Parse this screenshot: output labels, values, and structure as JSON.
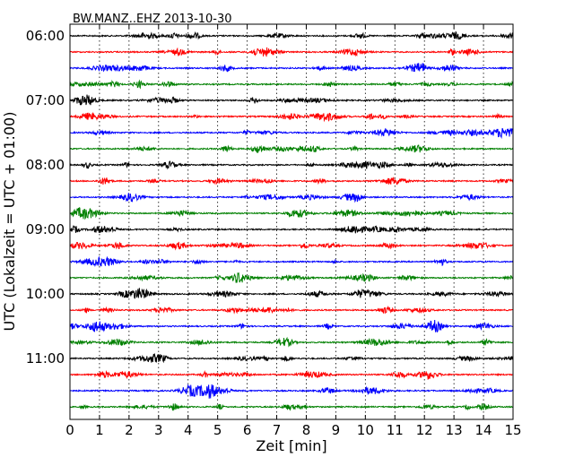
{
  "chart_data": {
    "type": "line",
    "title": "BW.MANZ..EHZ 2013-10-30",
    "xlabel": "Zeit  [min]",
    "ylabel": "UTC (Lokalzeit = UTC + 01:00)",
    "xlim": [
      0,
      15
    ],
    "x_ticks": [
      "0",
      "1",
      "2",
      "3",
      "4",
      "5",
      "6",
      "7",
      "8",
      "9",
      "10",
      "11",
      "12",
      "13",
      "14",
      "15"
    ],
    "y_tick_labels": [
      "06:00",
      "07:00",
      "08:00",
      "09:00",
      "10:00",
      "11:00"
    ],
    "rows_per_hour": 4,
    "row_count": 24,
    "grid": "vertical dotted",
    "colors": [
      "#000000",
      "#ff0000",
      "#0000ff",
      "#008000"
    ]
  }
}
